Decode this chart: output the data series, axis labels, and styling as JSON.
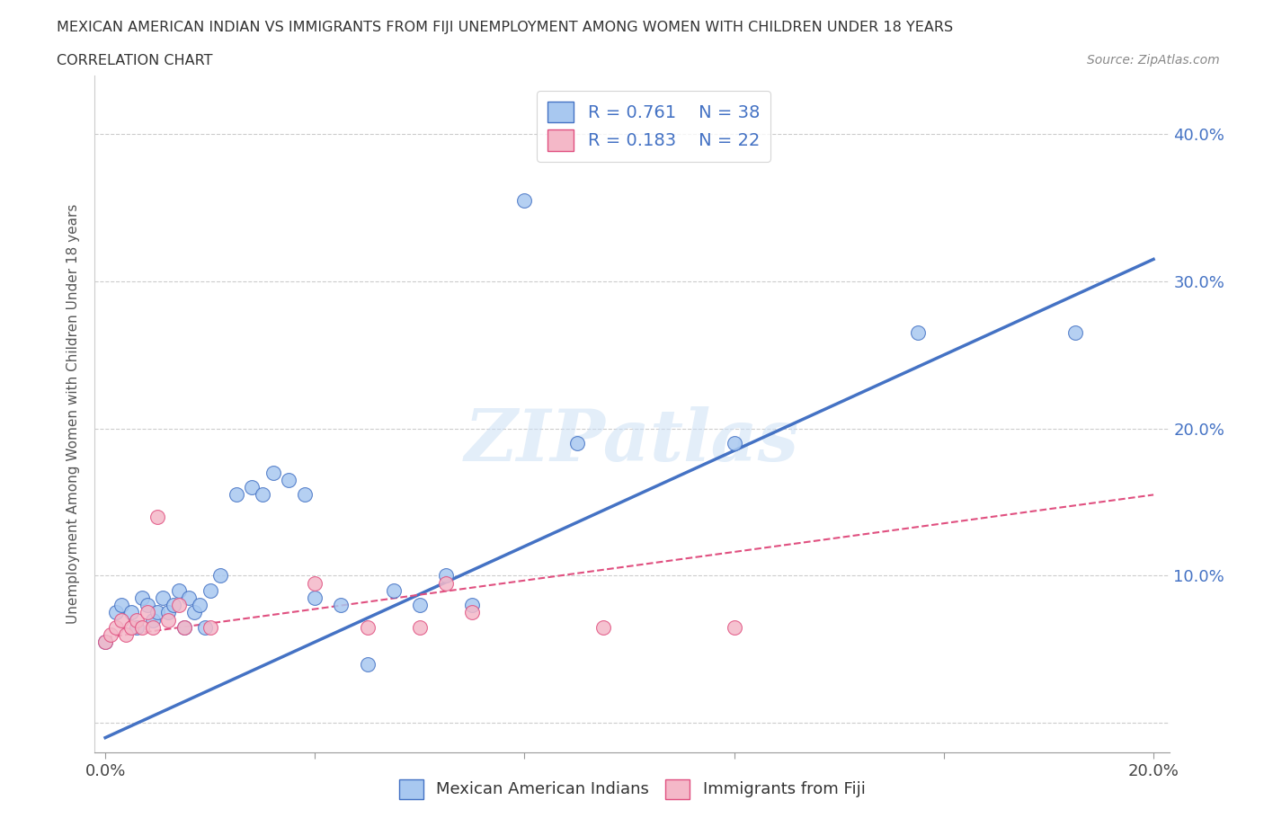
{
  "title_line1": "MEXICAN AMERICAN INDIAN VS IMMIGRANTS FROM FIJI UNEMPLOYMENT AMONG WOMEN WITH CHILDREN UNDER 18 YEARS",
  "title_line2": "CORRELATION CHART",
  "source": "Source: ZipAtlas.com",
  "xlabel_label": "Mexican American Indians",
  "xlabel_label2": "Immigrants from Fiji",
  "ylabel": "Unemployment Among Women with Children Under 18 years",
  "xlim": [
    0.0,
    0.2
  ],
  "ylim": [
    -0.02,
    0.44
  ],
  "yticks": [
    0.0,
    0.1,
    0.2,
    0.3,
    0.4
  ],
  "ytick_labels": [
    "",
    "10.0%",
    "20.0%",
    "30.0%",
    "40.0%"
  ],
  "xticks": [
    0.0,
    0.04,
    0.08,
    0.12,
    0.16,
    0.2
  ],
  "xtick_labels": [
    "0.0%",
    "",
    "",
    "",
    "",
    "20.0%"
  ],
  "blue_R": 0.761,
  "blue_N": 38,
  "pink_R": 0.183,
  "pink_N": 22,
  "blue_color": "#a8c8f0",
  "blue_line_color": "#4472c4",
  "pink_color": "#f4b8c8",
  "pink_line_color": "#e05080",
  "watermark_text": "ZIPatlas",
  "blue_scatter_x": [
    0.0,
    0.002,
    0.003,
    0.005,
    0.006,
    0.007,
    0.008,
    0.009,
    0.01,
    0.011,
    0.012,
    0.013,
    0.014,
    0.015,
    0.016,
    0.017,
    0.018,
    0.019,
    0.02,
    0.022,
    0.025,
    0.028,
    0.03,
    0.032,
    0.035,
    0.038,
    0.04,
    0.045,
    0.05,
    0.055,
    0.06,
    0.065,
    0.07,
    0.08,
    0.09,
    0.12,
    0.155,
    0.185
  ],
  "blue_scatter_y": [
    0.055,
    0.075,
    0.08,
    0.075,
    0.065,
    0.085,
    0.08,
    0.07,
    0.075,
    0.085,
    0.075,
    0.08,
    0.09,
    0.065,
    0.085,
    0.075,
    0.08,
    0.065,
    0.09,
    0.1,
    0.155,
    0.16,
    0.155,
    0.17,
    0.165,
    0.155,
    0.085,
    0.08,
    0.04,
    0.09,
    0.08,
    0.1,
    0.08,
    0.355,
    0.19,
    0.19,
    0.265,
    0.265
  ],
  "pink_scatter_x": [
    0.0,
    0.001,
    0.002,
    0.003,
    0.004,
    0.005,
    0.006,
    0.007,
    0.008,
    0.009,
    0.01,
    0.012,
    0.014,
    0.015,
    0.02,
    0.04,
    0.05,
    0.06,
    0.065,
    0.07,
    0.095,
    0.12
  ],
  "pink_scatter_y": [
    0.055,
    0.06,
    0.065,
    0.07,
    0.06,
    0.065,
    0.07,
    0.065,
    0.075,
    0.065,
    0.14,
    0.07,
    0.08,
    0.065,
    0.065,
    0.095,
    0.065,
    0.065,
    0.095,
    0.075,
    0.065,
    0.065
  ],
  "blue_line_x0": 0.0,
  "blue_line_y0": -0.01,
  "blue_line_x1": 0.2,
  "blue_line_y1": 0.315,
  "pink_line_x0": 0.0,
  "pink_line_y0": 0.058,
  "pink_line_x1": 0.2,
  "pink_line_y1": 0.155
}
